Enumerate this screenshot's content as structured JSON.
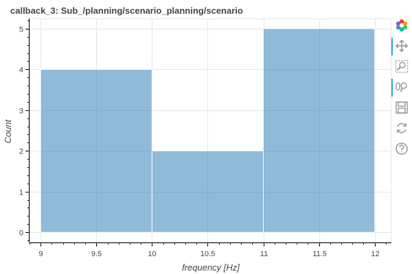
{
  "chart_data": {
    "type": "bar",
    "title": "callback_3: Sub_/planning/scenario_planning/scenario",
    "xlabel": "frequency [Hz]",
    "ylabel": "Count",
    "bins": [
      {
        "left": 9,
        "right": 10,
        "count": 4
      },
      {
        "left": 10,
        "right": 11,
        "count": 2
      },
      {
        "left": 11,
        "right": 12,
        "count": 5
      }
    ],
    "xlim": [
      8.9,
      12.15
    ],
    "ylim": [
      -0.25,
      5.25
    ],
    "xticks": [
      9,
      9.5,
      10,
      10.5,
      11,
      11.5,
      12
    ],
    "xtick_labels": [
      "9",
      "9.5",
      "10",
      "10.5",
      "11",
      "11.5",
      "12"
    ],
    "yticks": [
      0,
      1,
      2,
      3,
      4,
      5
    ],
    "ytick_labels": [
      "0",
      "1",
      "2",
      "3",
      "4",
      "5"
    ],
    "grid": true,
    "bar_color": "#1f77b4",
    "bar_alpha": 0.5
  },
  "toolbar": {
    "tools": [
      {
        "name": "bokeh-logo-icon",
        "active": false
      },
      {
        "name": "pan-tool-icon",
        "active": true
      },
      {
        "name": "box-zoom-tool-icon",
        "active": false
      },
      {
        "name": "wheel-zoom-tool-icon",
        "active": true
      },
      {
        "name": "save-tool-icon",
        "active": false
      },
      {
        "name": "reset-tool-icon",
        "active": false
      },
      {
        "name": "help-tool-icon",
        "active": false
      }
    ]
  }
}
